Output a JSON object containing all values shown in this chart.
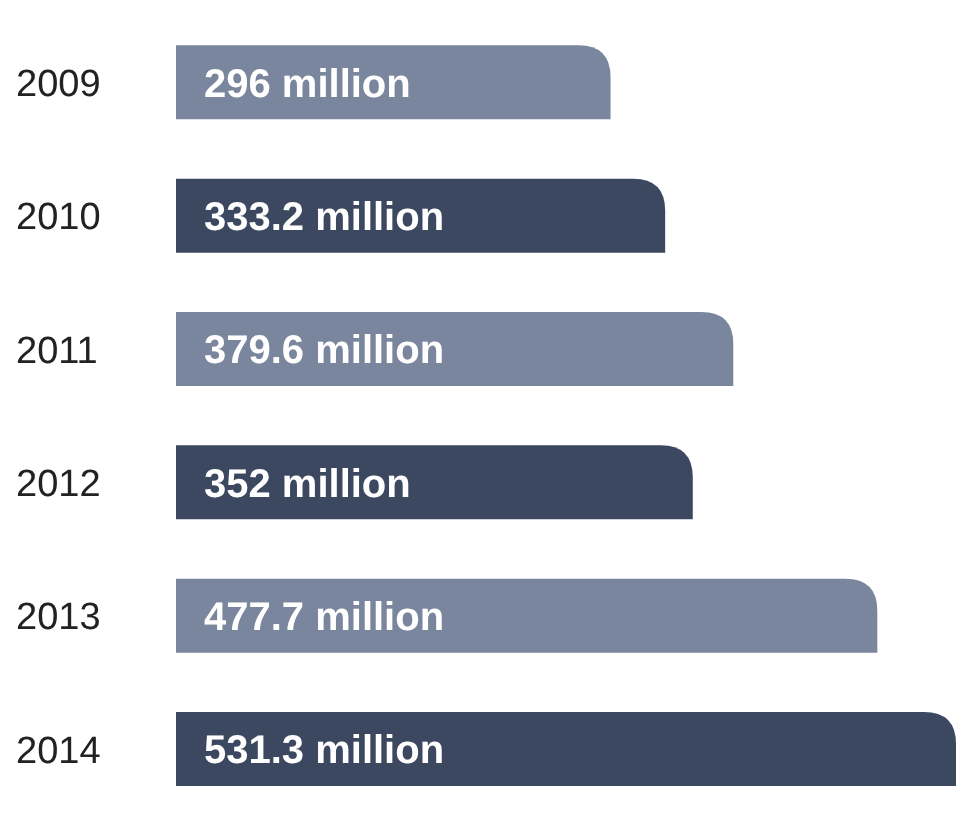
{
  "chart_data": {
    "type": "bar",
    "orientation": "horizontal",
    "categories": [
      "2009",
      "2010",
      "2011",
      "2012",
      "2013",
      "2014"
    ],
    "values": [
      296,
      333.2,
      379.6,
      352,
      477.7,
      531.3
    ],
    "value_labels": [
      "296 million",
      "333.2 million",
      "379.6 million",
      "352 million",
      "477.7 million",
      "531.3 million"
    ],
    "colors": [
      "#7a869d",
      "#3c4760",
      "#7a869d",
      "#3c4760",
      "#7a869d",
      "#3c4760"
    ],
    "grid": false,
    "legend": false
  }
}
